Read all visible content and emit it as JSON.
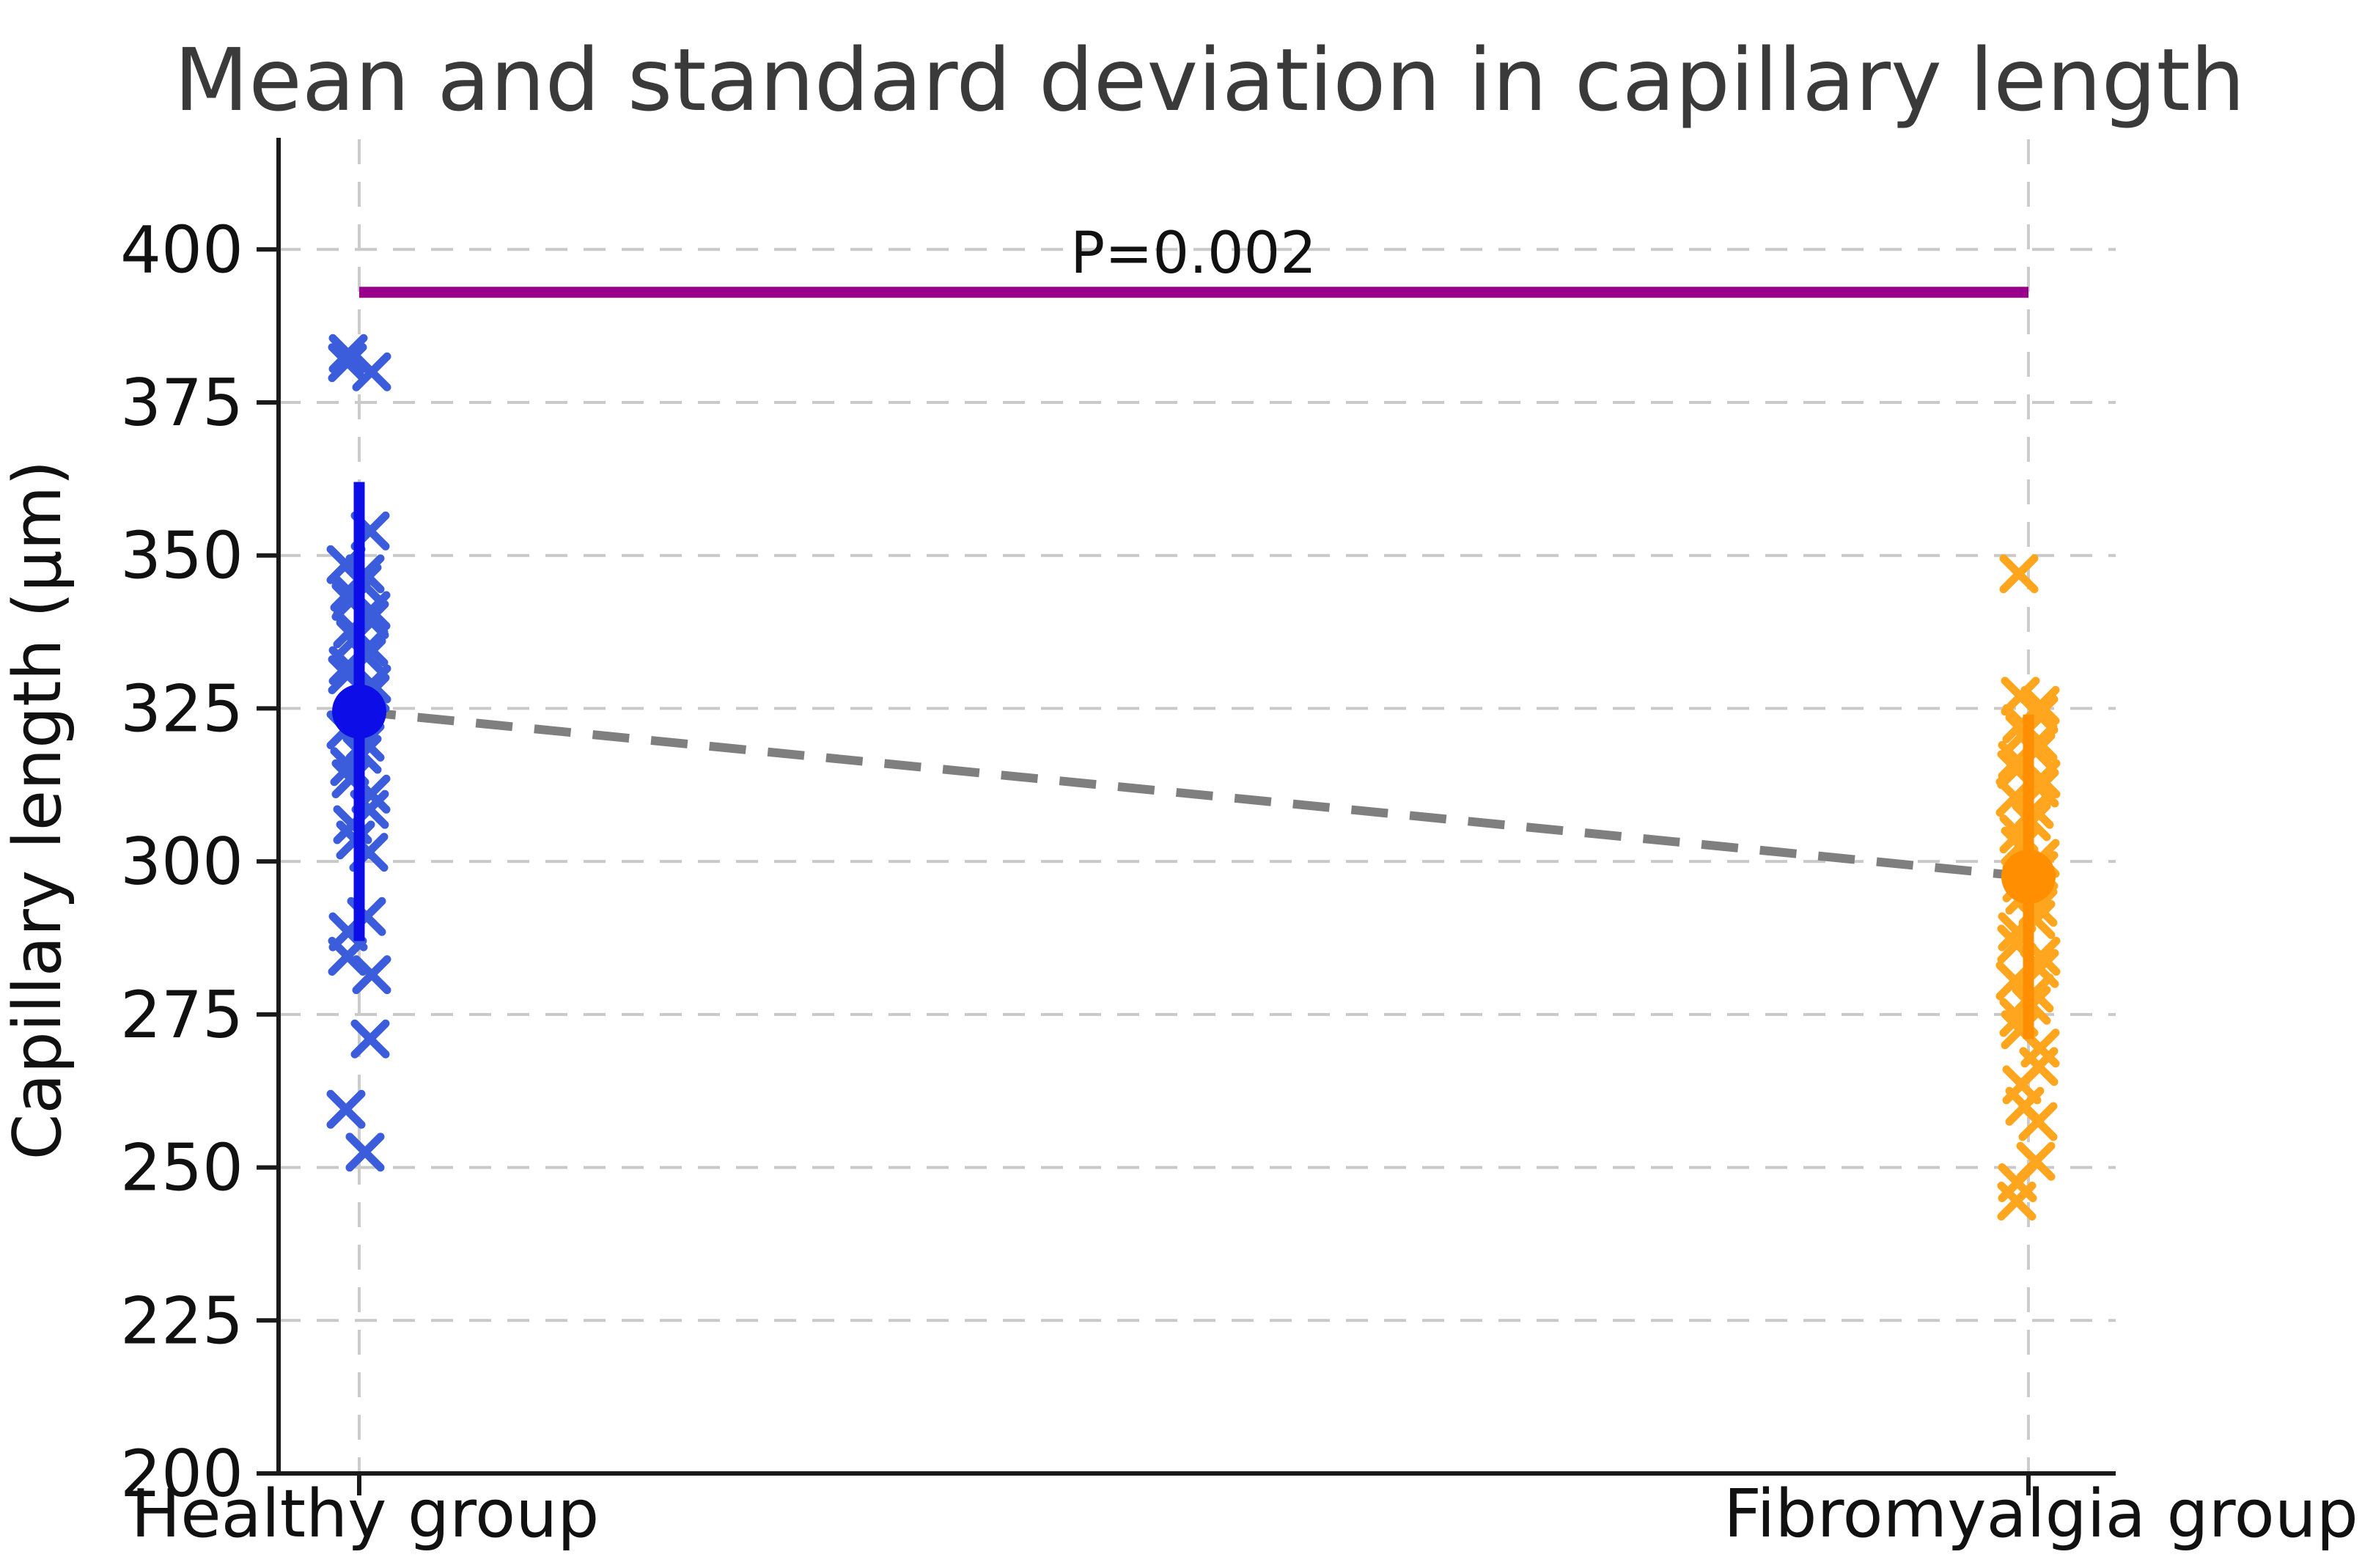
{
  "figure": {
    "background": "#ffffff",
    "title_color": "#3a3a3a"
  },
  "chart_data": {
    "type": "scatter",
    "title": "Mean and standard deviation in capillary length",
    "xlabel": "",
    "ylabel": "Capillary length (μm)",
    "ylim": [
      200,
      418
    ],
    "yticks": [
      200,
      225,
      250,
      275,
      300,
      325,
      350,
      375,
      400
    ],
    "grid": {
      "horizontal": true,
      "vertical_at_groups": true,
      "style": "dashed",
      "color": "#c9c9c9"
    },
    "legend": "none",
    "categories": [
      "Healthy group",
      "Fibromyalgia group"
    ],
    "series": [
      {
        "name": "Healthy group",
        "marker": "x",
        "point_color": "#3b5cdb",
        "mean_color": "#0d0de8",
        "mean": 324.5,
        "sd": 37.5,
        "values": [
          383,
          381.5,
          380,
          354,
          348.5,
          347,
          345.5,
          344,
          342.5,
          341,
          339.5,
          338,
          336.5,
          335,
          333.5,
          332,
          330.5,
          329,
          327.5,
          321.5,
          319.5,
          317.5,
          315.5,
          313.5,
          311,
          308.5,
          306,
          303.5,
          301.5,
          291,
          288.5,
          284.5,
          281.5,
          271,
          259.5,
          252.5
        ]
      },
      {
        "name": "Fibromyalgia group",
        "marker": "x",
        "point_color": "#ffa51e",
        "mean_color": "#ff8f00",
        "mean": 297.5,
        "sd": 26.5,
        "values": [
          347,
          327,
          325.5,
          324,
          322.5,
          321,
          319.5,
          318,
          316.5,
          315,
          313.5,
          312,
          310.5,
          308.5,
          306.5,
          304.5,
          302.5,
          300.5,
          298.5,
          296.5,
          294.5,
          292.5,
          290.5,
          288.5,
          286.5,
          284.5,
          282.5,
          280.5,
          278.5,
          276.5,
          274.5,
          272.5,
          269.5,
          266.5,
          263.5,
          260,
          257.5,
          251,
          247.5,
          244.5
        ]
      }
    ],
    "mean_connector": {
      "style": "dashed",
      "color": "#7f7f7f"
    },
    "significance": {
      "label": "P=0.002",
      "line_y": 393,
      "line_color": "#98008c",
      "text_color": "#111111"
    }
  }
}
